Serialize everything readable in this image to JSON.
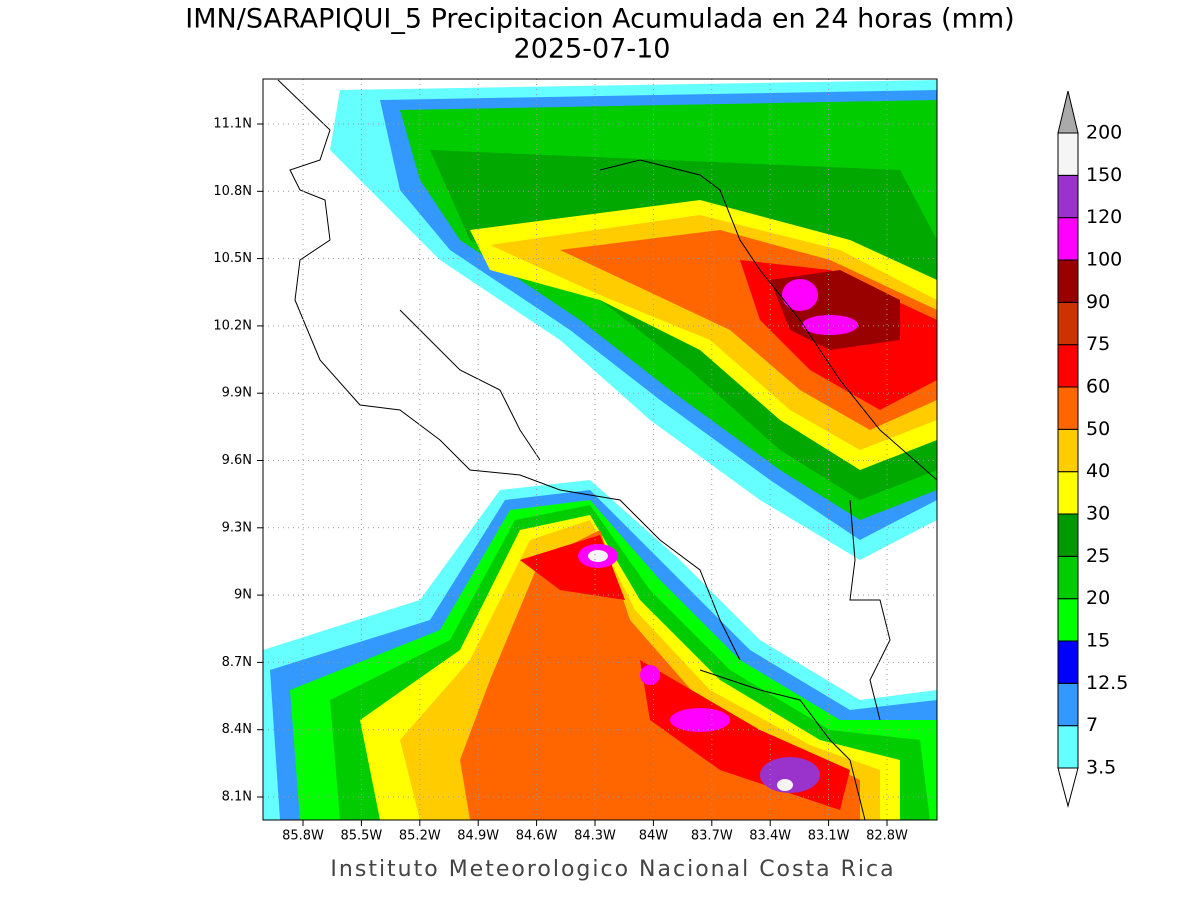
{
  "header": {
    "title": "IMN/SARAPIQUI_5 Precipitacion Acumulada en 24 horas (mm)",
    "date": "2025-07-10"
  },
  "map": {
    "lat_labels": [
      "11.1N",
      "10.8N",
      "10.5N",
      "10.2N",
      "9.9N",
      "9.6N",
      "9.3N",
      "9N",
      "8.7N",
      "8.4N",
      "8.1N"
    ],
    "lon_labels": [
      "85.8W",
      "85.5W",
      "85.2W",
      "84.9W",
      "84.6W",
      "84.3W",
      "84W",
      "83.7W",
      "83.4W",
      "83.1W",
      "82.8W"
    ]
  },
  "colorbar": {
    "levels": [
      3.5,
      7,
      12.5,
      15,
      20,
      25,
      30,
      40,
      50,
      60,
      75,
      90,
      100,
      120,
      150,
      200
    ],
    "colors": [
      "#ffffff",
      "#66ffff",
      "#3399ff",
      "#0000ff",
      "#00ff00",
      "#00cc00",
      "#009900",
      "#ffff00",
      "#ffcc00",
      "#ff6600",
      "#ff0000",
      "#cc3300",
      "#990000",
      "#ff00ff",
      "#9933cc",
      "#f5f5f5",
      "#aaaaaa"
    ]
  },
  "footer": "Instituto Meteorologico Nacional Costa Rica"
}
